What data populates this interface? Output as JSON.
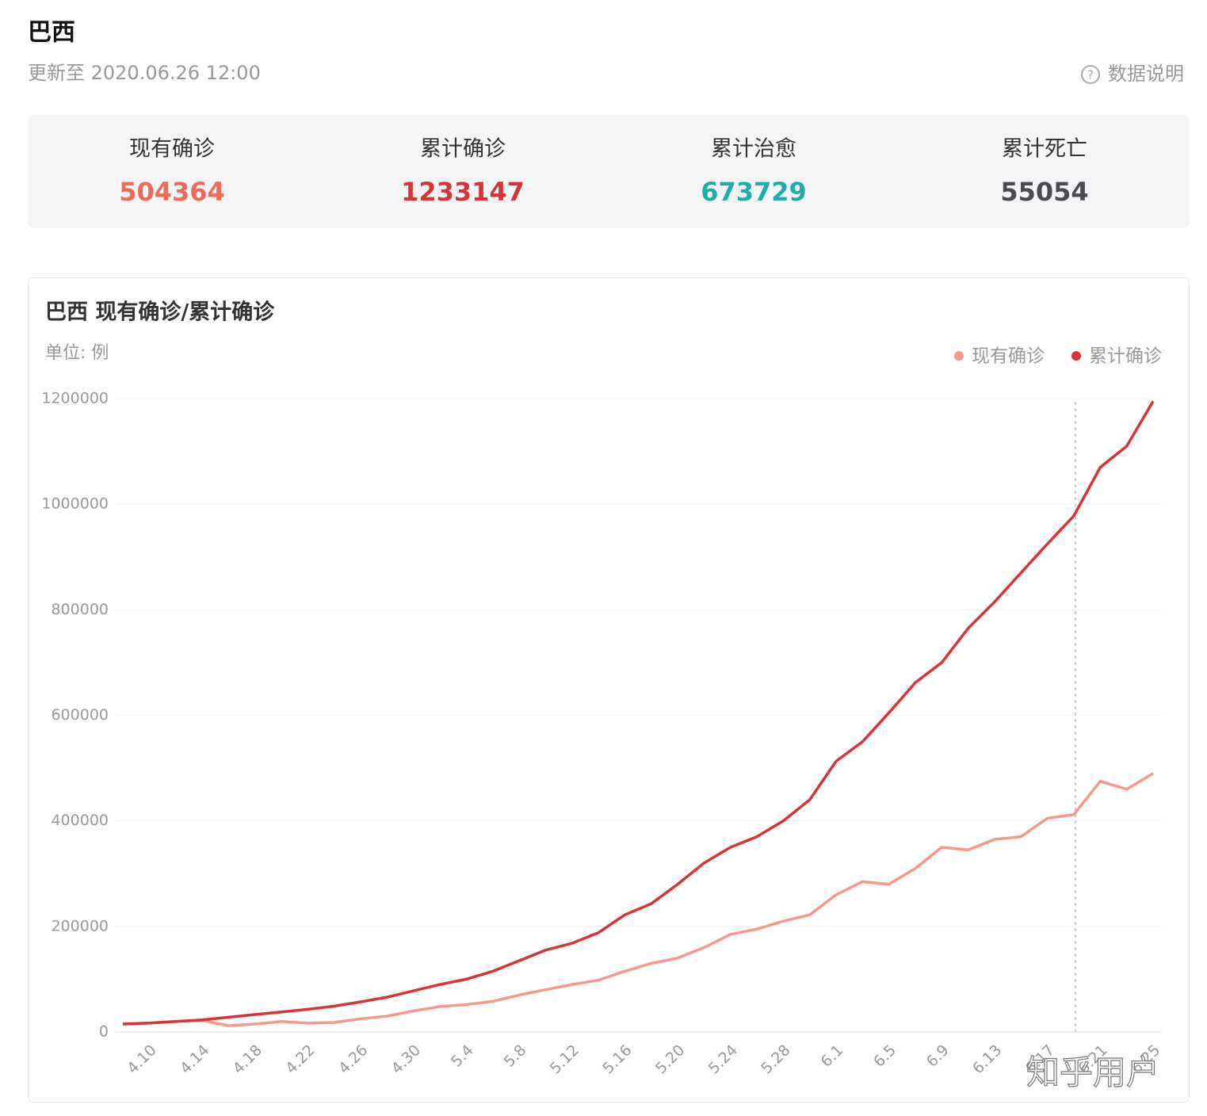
{
  "header": {
    "title": "巴西",
    "updated": "更新至 2020.06.26 12:00",
    "help": "数据说明"
  },
  "stats": [
    {
      "label": "现有确诊",
      "value": 504364,
      "color": "#f06a5a"
    },
    {
      "label": "累计确诊",
      "value": 1233147,
      "color": "#d9333a"
    },
    {
      "label": "累计治愈",
      "value": 673729,
      "color": "#1fadab"
    },
    {
      "label": "累计死亡",
      "value": 55054,
      "color": "#4a4a4f"
    }
  ],
  "watermark": "知乎用户",
  "chart_data": {
    "type": "line",
    "title": "巴西 现有确诊/累计确诊",
    "unit": "单位: 例",
    "categories": [
      null,
      "4.10",
      null,
      "4.14",
      null,
      "4.18",
      null,
      "4.22",
      null,
      "4.26",
      null,
      "4.30",
      null,
      "5.4",
      null,
      "5.8",
      null,
      "5.12",
      null,
      "5.16",
      null,
      "5.20",
      null,
      "5.24",
      null,
      "5.28",
      null,
      "6.1",
      null,
      "6.5",
      null,
      "6.9",
      null,
      "6.13",
      null,
      "6.17",
      null,
      "6.21",
      null,
      "6.25"
    ],
    "series": [
      {
        "name": "现有确诊",
        "color": "#f39a8a",
        "values": [
          15000,
          17000,
          20000,
          22000,
          12000,
          15000,
          20000,
          17000,
          18000,
          25000,
          30000,
          40000,
          48000,
          52000,
          58000,
          70000,
          80000,
          90000,
          98000,
          115000,
          130000,
          140000,
          160000,
          185000,
          195000,
          210000,
          222000,
          260000,
          285000,
          280000,
          310000,
          350000,
          345000,
          365000,
          370000,
          405000,
          412000,
          475000,
          460000,
          490000
        ]
      },
      {
        "name": "累计确诊",
        "color": "#d9333a",
        "values": [
          15000,
          17000,
          20000,
          23000,
          28000,
          33000,
          38000,
          43000,
          49000,
          57000,
          66000,
          78000,
          90000,
          100000,
          115000,
          135000,
          155000,
          168000,
          188000,
          222000,
          243000,
          280000,
          320000,
          350000,
          370000,
          400000,
          440000,
          513000,
          550000,
          605000,
          662000,
          700000,
          765000,
          815000,
          870000,
          925000,
          978000,
          1070000,
          1110000,
          1195000
        ]
      }
    ],
    "ylim": [
      0,
      1200000
    ],
    "yticks": [
      0,
      200000,
      400000,
      600000,
      800000,
      1000000,
      1200000
    ],
    "grid": true,
    "legend": "top-right"
  }
}
